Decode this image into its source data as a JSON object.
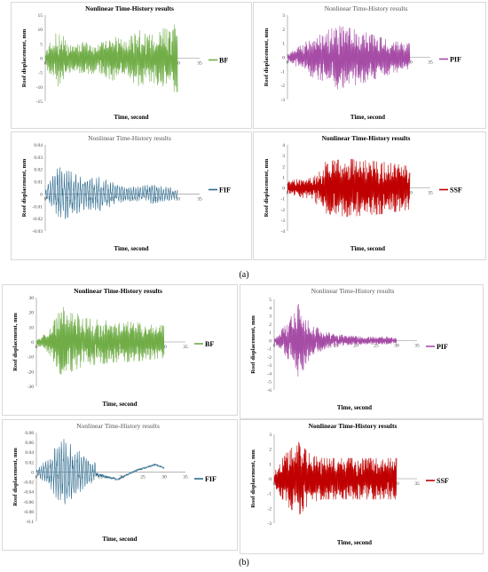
{
  "figure_labels": [
    "(a)",
    "(b)"
  ],
  "chart_data": [
    {
      "type": "line",
      "title": "Nonlinear Time-History results",
      "title_bold": true,
      "xlabel": "Time, second",
      "ylabel": "Roof displacement, mm",
      "xlim": [
        0,
        35
      ],
      "ylim": [
        -15,
        15
      ],
      "xticks": [
        "0",
        "5",
        "10",
        "15",
        "20",
        "25",
        "30",
        "35"
      ],
      "yticks": [
        "15",
        "10",
        "5",
        "0",
        "-5",
        "-10",
        "-15"
      ],
      "legend": "BF",
      "legend_position": "right",
      "color": "#70ad47",
      "duration": 30,
      "amp": [
        3,
        10,
        4,
        6,
        5,
        8,
        6,
        10,
        8,
        11,
        12
      ],
      "seed": 11,
      "offset": 0,
      "freq": 1.6
    },
    {
      "type": "line",
      "title": "Nonlinear Time-History results",
      "title_bold": false,
      "xlabel": "Time, second",
      "ylabel": "Roof displacement, mm",
      "xlim": [
        0,
        35
      ],
      "ylim": [
        -3,
        3
      ],
      "xticks": [
        "0",
        "5",
        "10",
        "15",
        "20",
        "25",
        "30",
        "35"
      ],
      "yticks": [
        "3",
        "2",
        "1",
        "0",
        "-1",
        "-2",
        "-3"
      ],
      "legend": "PIF",
      "legend_position": "right",
      "color": "#a64ca6",
      "duration": 30,
      "amp": [
        0.3,
        0.8,
        1.4,
        1.8,
        2.3,
        2.1,
        1.9,
        1.6,
        1.3,
        1.1,
        1.0
      ],
      "seed": 23,
      "offset": 0,
      "freq": 1.6
    },
    {
      "type": "line",
      "title": "Nonlinear Time-History results",
      "title_bold": false,
      "xlabel": "Time, second",
      "ylabel": "Roof displacement, mm",
      "xlim": [
        0,
        35
      ],
      "ylim": [
        -0.03,
        0.04
      ],
      "xticks": [
        "0",
        "5",
        "10",
        "15",
        "20",
        "25",
        "30",
        "35"
      ],
      "yticks": [
        "0.04",
        "0.03",
        "0.02",
        "0.01",
        "0",
        "-0.01",
        "-0.02",
        "-0.03"
      ],
      "legend": "FIF",
      "legend_position": "right",
      "color": "#2e6b8e",
      "duration": 30,
      "amp": [
        0.004,
        0.022,
        0.018,
        0.012,
        0.014,
        0.01,
        0.006,
        0.006,
        0.008,
        0.006,
        0.004
      ],
      "seed": 37,
      "offset": 0,
      "freq": 0.6
    },
    {
      "type": "line",
      "title": "Nonlinear Time-History results",
      "title_bold": true,
      "xlabel": "Time, second",
      "ylabel": "Roof displacement, mm",
      "xlim": [
        0,
        35
      ],
      "ylim": [
        -4,
        4
      ],
      "xticks": [
        "0",
        "5",
        "10",
        "15",
        "20",
        "25",
        "30",
        "35"
      ],
      "yticks": [
        "4",
        "3",
        "2",
        "1",
        "0",
        "-1",
        "-2",
        "-3",
        "-4"
      ],
      "legend": "SSF",
      "legend_position": "right",
      "color": "#c00000",
      "duration": 30,
      "amp": [
        0.6,
        0.9,
        1.0,
        2.4,
        2.6,
        2.7,
        2.6,
        2.5,
        2.4,
        2.2,
        2.0
      ],
      "seed": 41,
      "offset": 0,
      "freq": 1.7
    },
    {
      "type": "line",
      "title": "Nonlinear Time-History results",
      "title_bold": true,
      "xlabel": "Time, second",
      "ylabel": "Roof displacement, mm",
      "xlim": [
        0,
        35
      ],
      "ylim": [
        -30,
        30
      ],
      "xticks": [
        "0",
        "5",
        "10",
        "15",
        "20",
        "25",
        "30",
        "35"
      ],
      "yticks": [
        "30",
        "20",
        "10",
        "0",
        "-10",
        "-20",
        "-30"
      ],
      "legend": "BF",
      "legend_position": "right",
      "color": "#70ad47",
      "duration": 30,
      "amp": [
        2,
        8,
        24,
        20,
        16,
        15,
        14,
        14,
        13,
        12,
        11
      ],
      "seed": 53,
      "offset": 0,
      "freq": 1.6
    },
    {
      "type": "line",
      "title": "Nonlinear Time-History results",
      "title_bold": false,
      "xlabel": "Time, second",
      "ylabel": "Roof displacement, mm",
      "xlim": [
        0,
        35
      ],
      "ylim": [
        -6,
        5
      ],
      "xticks": [
        "0",
        "5",
        "10",
        "15",
        "20",
        "25",
        "30",
        "35"
      ],
      "yticks": [
        "5",
        "4",
        "3",
        "2",
        "1",
        "0",
        "-1",
        "-2",
        "-3",
        "-4",
        "-5",
        "-6"
      ],
      "legend": "PIF",
      "legend_position": "right",
      "color": "#a64ca6",
      "duration": 30,
      "amp": [
        0.3,
        2.0,
        4.5,
        2.0,
        1.2,
        0.8,
        0.6,
        0.5,
        0.5,
        0.5,
        0.4
      ],
      "seed": 67,
      "offset": 0,
      "freq": 1.6
    },
    {
      "type": "line",
      "title": "Nonlinear Time-History results",
      "title_bold": false,
      "xlabel": "Time, second",
      "ylabel": "Roof displacement, mm",
      "xlim": [
        0,
        35
      ],
      "ylim": [
        -0.1,
        0.08
      ],
      "xticks": [
        "0",
        "5",
        "10",
        "15",
        "20",
        "25",
        "30",
        "35"
      ],
      "yticks": [
        "0.08",
        "0.06",
        "0.04",
        "0.02",
        "0",
        "-0.02",
        "-0.04",
        "-0.06",
        "-0.08",
        "-0.1"
      ],
      "legend": "FIF",
      "legend_position": "right",
      "color": "#2e6b8e",
      "duration": 30,
      "amp": [
        0.005,
        0.03,
        0.07,
        0.05,
        0.03,
        0.012,
        0.008,
        0.006,
        0.006,
        0.006,
        0.004
      ],
      "seed": 79,
      "offset": 0,
      "freq": 0.6,
      "tail": [
        {
          "t": 14,
          "v": -0.005
        },
        {
          "t": 19,
          "v": -0.015
        },
        {
          "t": 24,
          "v": 0.005
        },
        {
          "t": 28,
          "v": 0.015
        },
        {
          "t": 30,
          "v": 0.008
        }
      ]
    },
    {
      "type": "line",
      "title": "Nonlinear Time-History results",
      "title_bold": true,
      "xlabel": "Time, second",
      "ylabel": "Roof displacement, mm",
      "xlim": [
        0,
        35
      ],
      "ylim": [
        -3,
        3
      ],
      "xticks": [
        "0",
        "5",
        "10",
        "15",
        "20",
        "25",
        "30",
        "35"
      ],
      "yticks": [
        "3",
        "2",
        "1",
        "0",
        "-1",
        "-2",
        "-3"
      ],
      "legend": "SSF",
      "legend_position": "right",
      "color": "#c00000",
      "duration": 30,
      "amp": [
        0.5,
        1.8,
        2.5,
        1.6,
        1.4,
        1.4,
        1.4,
        1.4,
        1.4,
        1.4,
        1.4
      ],
      "seed": 97,
      "offset": 0,
      "freq": 1.7
    }
  ]
}
